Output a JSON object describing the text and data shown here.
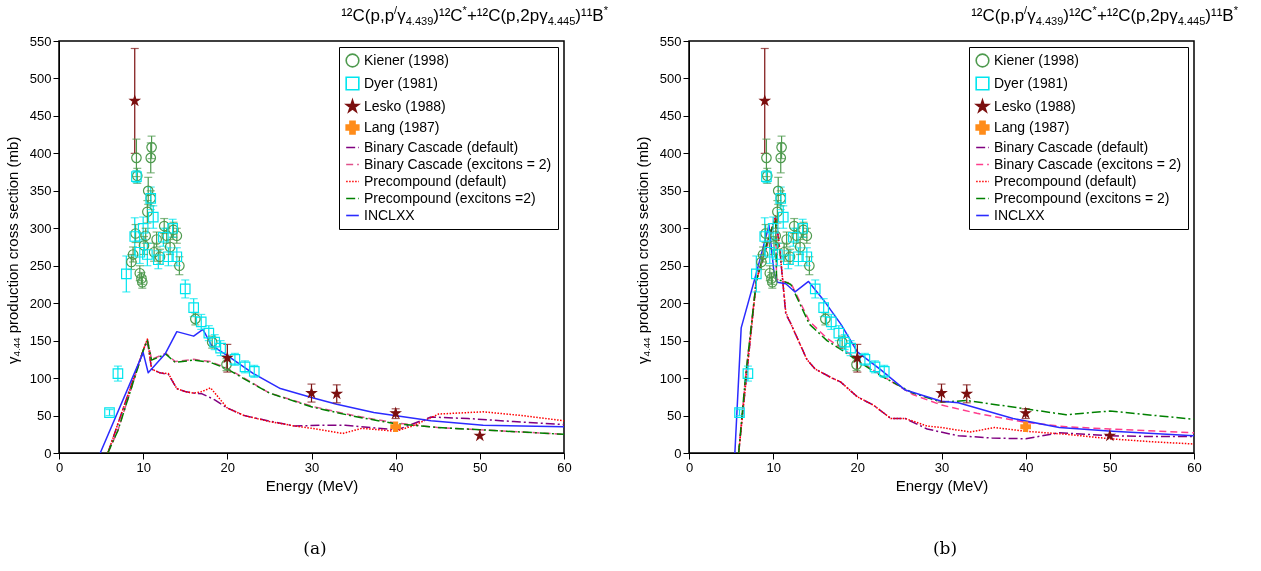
{
  "chart_data": [
    {
      "type": "line",
      "title": "¹²C(p,p$^{/}$γ$_{4.439}$)¹²C$^{*}$+¹²C(p,2pγ$_{4.445}$)¹¹B$^{*}$",
      "xlabel": "Energy (MeV)",
      "ylabel": "γ$_{4.44}$ production cross section (mb)",
      "annotations": [
        "(a)"
      ],
      "xlim": [
        0,
        60
      ],
      "ylim": [
        0,
        550
      ],
      "xticks": [
        0,
        10,
        20,
        30,
        40,
        50,
        60
      ],
      "yticks": [
        0,
        50,
        100,
        150,
        200,
        250,
        300,
        350,
        400,
        450,
        500,
        550
      ],
      "grid": false,
      "legend": "top right",
      "series": [
        {
          "name": "Kiener (1998)",
          "type": "scatter",
          "marker": "circle",
          "color": "#4e9a4e",
          "x": [
            8.6,
            8.8,
            9.1,
            9.2,
            9.3,
            9.6,
            9.8,
            9.9,
            10.1,
            10.3,
            10.5,
            10.6,
            10.9,
            11.0,
            10.9,
            11.3,
            11.6,
            12.0,
            12.5,
            12.8,
            13.2,
            13.6,
            14.0,
            14.3,
            16.2,
            18.2,
            19.9
          ],
          "values": [
            255,
            265,
            293,
            394,
            370,
            240,
            233,
            228,
            277,
            290,
            322,
            350,
            394,
            408,
            340,
            268,
            285,
            262,
            303,
            290,
            275,
            298,
            290,
            250,
            179,
            148,
            118
          ],
          "errors": [
            10,
            10,
            12,
            25,
            10,
            10,
            8,
            8,
            12,
            10,
            15,
            18,
            20,
            15,
            10,
            12,
            10,
            10,
            10,
            10,
            10,
            10,
            10,
            12,
            8,
            8,
            8
          ]
        },
        {
          "name": "Dyer (1981)",
          "type": "scatter",
          "marker": "square",
          "color": "#00e5ee",
          "x": [
            6.0,
            7.0,
            8.0,
            9.0,
            9.2,
            9.6,
            10.0,
            10.5,
            10.9,
            11.2,
            11.8,
            12.4,
            13.0,
            13.5,
            14.0,
            15.0,
            16.0,
            16.9,
            17.8,
            18.5,
            19.2,
            20.9,
            22.1,
            23.2
          ],
          "values": [
            54,
            106,
            239,
            289,
            369,
            268,
            300,
            265,
            340,
            315,
            258,
            288,
            262,
            300,
            262,
            219,
            194,
            175,
            160,
            148,
            140,
            125,
            115,
            109
          ],
          "errors": [
            4,
            10,
            24,
            25,
            8,
            15,
            15,
            15,
            15,
            15,
            12,
            12,
            12,
            12,
            12,
            12,
            12,
            10,
            10,
            10,
            10,
            8,
            8,
            8
          ]
        },
        {
          "name": "Lesko (1988)",
          "type": "scatter",
          "marker": "star",
          "color": "#7b0f0f",
          "x": [
            9.0,
            20,
            30,
            33,
            40,
            50
          ],
          "values": [
            470,
            127,
            80,
            79,
            53,
            23
          ],
          "errors": [
            [
              400,
              540
            ],
            [
              108,
              145
            ],
            [
              68,
              92
            ],
            [
              67,
              91
            ],
            [
              46,
              59
            ],
            null
          ]
        },
        {
          "name": "Lang (1987)",
          "type": "scatter",
          "marker": "cross",
          "color": "#ff8c1a",
          "x": [
            40
          ],
          "values": [
            35
          ]
        },
        {
          "name": "Binary Cascade (default)",
          "type": "line",
          "line_style": "dashdot",
          "color": "#800080",
          "x": [
            5.8,
            10.1,
            10.5,
            11,
            12,
            13,
            14,
            15,
            16,
            17,
            18.5,
            20,
            22,
            24.8,
            28,
            31,
            34,
            37,
            40.2,
            44.2,
            48.6,
            54,
            60
          ],
          "values": [
            0,
            140,
            150,
            112,
            107,
            105,
            86,
            82,
            80,
            79,
            71,
            60,
            50,
            43,
            36,
            37,
            37,
            34,
            31,
            48,
            46,
            42,
            38
          ]
        },
        {
          "name": "Binary Cascade (excitons = 2)",
          "type": "line",
          "line_style": "dashed",
          "color": "#e0508a",
          "x": [
            5.8,
            7,
            10.1,
            10.5,
            11,
            12.7,
            13.8,
            16,
            18,
            20,
            22,
            25,
            30.2,
            35,
            40,
            45,
            50,
            55,
            60
          ],
          "values": [
            0,
            30,
            140,
            152,
            125,
            133,
            122,
            125,
            122,
            113,
            100,
            80,
            62,
            50,
            40,
            34,
            31,
            28,
            25
          ]
        },
        {
          "name": "Precompound (default)",
          "type": "line",
          "line_style": "dotted",
          "color": "#ff0000",
          "x": [
            5.8,
            10.1,
            10.5,
            11,
            12,
            13,
            14,
            15,
            16,
            17,
            18,
            20,
            22,
            25,
            28,
            30,
            33.7,
            36,
            40,
            42,
            45.1,
            50.4,
            55,
            60
          ],
          "values": [
            0,
            140,
            152,
            112,
            107,
            106,
            86,
            82,
            80,
            82,
            87,
            60,
            50,
            42,
            36,
            33,
            26,
            33,
            29,
            36,
            52,
            55,
            50,
            43
          ]
        },
        {
          "name": "Precompound (excitons =2)",
          "type": "line",
          "line_style": "dashdot",
          "color": "#008000",
          "x": [
            5.8,
            7,
            10.1,
            10.5,
            11,
            12.7,
            13.8,
            16,
            18,
            20,
            22,
            25,
            30.2,
            35,
            40,
            45,
            50,
            55,
            60
          ],
          "values": [
            0,
            30,
            140,
            150,
            124,
            132,
            121,
            124,
            121,
            112,
            99,
            80,
            61,
            49,
            39,
            34,
            31,
            28,
            25
          ]
        },
        {
          "name": "INCLXX",
          "type": "line",
          "line_style": "solid",
          "color": "#2b2bff",
          "x": [
            4.9,
            10.0,
            10.6,
            12.6,
            14.0,
            16.0,
            17.1,
            18.1,
            20.4,
            23.1,
            26.3,
            30,
            33,
            37.4,
            44.2,
            50.4,
            60
          ],
          "values": [
            0,
            134,
            107,
            132,
            162,
            156,
            165,
            144,
            127,
            106,
            86,
            74,
            65,
            54,
            43,
            37,
            35
          ]
        }
      ]
    },
    {
      "type": "line",
      "title": "¹²C(p,p$^{/}$γ$_{4.439}$)¹²C$^{*}$+¹²C(p,2pγ$_{4.445}$)¹¹B$^{*}$",
      "xlabel": "Energy (MeV)",
      "ylabel": "γ$_{4.44}$ production cross section (mb)",
      "annotations": [
        "(b)"
      ],
      "xlim": [
        0,
        60
      ],
      "ylim": [
        0,
        550
      ],
      "xticks": [
        0,
        10,
        20,
        30,
        40,
        50,
        60
      ],
      "yticks": [
        0,
        50,
        100,
        150,
        200,
        250,
        300,
        350,
        400,
        450,
        500,
        550
      ],
      "grid": false,
      "legend": "top right",
      "series": [
        {
          "name": "Kiener (1998)",
          "type": "scatter",
          "marker": "circle",
          "color": "#4e9a4e",
          "x": [
            8.6,
            8.8,
            9.1,
            9.2,
            9.3,
            9.6,
            9.8,
            9.9,
            10.1,
            10.3,
            10.5,
            10.6,
            10.9,
            11.0,
            10.9,
            11.3,
            11.6,
            12.0,
            12.5,
            12.8,
            13.2,
            13.6,
            14.0,
            14.3,
            16.2,
            18.2,
            19.9
          ],
          "values": [
            255,
            265,
            293,
            394,
            370,
            240,
            233,
            228,
            277,
            290,
            322,
            350,
            394,
            408,
            340,
            268,
            285,
            262,
            303,
            290,
            275,
            298,
            290,
            250,
            179,
            148,
            118
          ],
          "errors": [
            10,
            10,
            12,
            25,
            10,
            10,
            8,
            8,
            12,
            10,
            15,
            18,
            20,
            15,
            10,
            12,
            10,
            10,
            10,
            10,
            10,
            10,
            10,
            12,
            8,
            8,
            8
          ]
        },
        {
          "name": "Dyer (1981)",
          "type": "scatter",
          "marker": "square",
          "color": "#00e5ee",
          "x": [
            6.0,
            7.0,
            8.0,
            9.0,
            9.2,
            9.6,
            10.0,
            10.5,
            10.9,
            11.2,
            11.8,
            12.4,
            13.0,
            13.5,
            14.0,
            15.0,
            16.0,
            16.9,
            17.8,
            18.5,
            19.2,
            20.9,
            22.1,
            23.2
          ],
          "values": [
            54,
            106,
            239,
            289,
            369,
            268,
            300,
            265,
            340,
            315,
            258,
            288,
            262,
            300,
            262,
            219,
            194,
            175,
            160,
            148,
            140,
            125,
            115,
            109
          ],
          "errors": [
            4,
            10,
            24,
            25,
            8,
            15,
            15,
            15,
            15,
            15,
            12,
            12,
            12,
            12,
            12,
            12,
            12,
            10,
            10,
            10,
            10,
            8,
            8,
            8
          ]
        },
        {
          "name": "Lesko (1988)",
          "type": "scatter",
          "marker": "star",
          "color": "#7b0f0f",
          "x": [
            9.0,
            20,
            30,
            33,
            40,
            50
          ],
          "values": [
            470,
            127,
            80,
            79,
            53,
            23
          ],
          "errors": [
            [
              400,
              540
            ],
            [
              108,
              145
            ],
            [
              68,
              92
            ],
            [
              67,
              91
            ],
            [
              46,
              59
            ],
            null
          ]
        },
        {
          "name": "Lang (1987)",
          "type": "scatter",
          "marker": "cross",
          "color": "#ff8c1a",
          "x": [
            40
          ],
          "values": [
            35
          ]
        },
        {
          "name": "Binary Cascade (default)",
          "type": "line",
          "line_style": "dashdot",
          "color": "#800080",
          "x": [
            5.9,
            8,
            10.3,
            10.8,
            11.5,
            12,
            13,
            14,
            15,
            17,
            18,
            20,
            21.9,
            24,
            25.7,
            28.3,
            32,
            36,
            40,
            44,
            50,
            55,
            60
          ],
          "values": [
            0,
            230,
            315,
            270,
            185,
            175,
            150,
            125,
            112,
            100,
            95,
            75,
            64,
            46,
            46,
            32,
            23,
            20,
            19,
            27,
            23,
            22,
            22
          ]
        },
        {
          "name": "Binary Cascade (excitons = 2)",
          "type": "line",
          "line_style": "dashed",
          "color": "#ff3c8c",
          "x": [
            5.9,
            6.7,
            8,
            9.5,
            10.3,
            10.4,
            11.5,
            12.1,
            14.3,
            16.4,
            18.9,
            20,
            22.8,
            26.6,
            30,
            34.2,
            40,
            44.8,
            50,
            60
          ],
          "values": [
            0,
            100,
            230,
            290,
            315,
            232,
            228,
            227,
            176,
            153,
            134,
            125,
            104,
            78,
            64,
            53,
            41,
            35,
            32,
            27
          ]
        },
        {
          "name": "Precompound (default)",
          "type": "line",
          "line_style": "dotted",
          "color": "#ff0000",
          "x": [
            5.9,
            8,
            10.3,
            10.8,
            11.5,
            12,
            13,
            14,
            15,
            17,
            18,
            20,
            21.9,
            24,
            25.7,
            28.3,
            30,
            33.4,
            36.3,
            40,
            44.8,
            50,
            55,
            60
          ],
          "values": [
            0,
            230,
            318,
            270,
            188,
            175,
            150,
            125,
            112,
            100,
            95,
            75,
            64,
            46,
            46,
            36,
            34,
            28,
            34,
            29,
            25,
            19,
            15,
            12
          ]
        },
        {
          "name": "Precompound (excitons = 2)",
          "type": "line",
          "line_style": "dashdot",
          "color": "#008000",
          "x": [
            5.9,
            6.7,
            8,
            9.5,
            10.3,
            10.4,
            11.5,
            12.1,
            14.3,
            16.4,
            18.9,
            20,
            22.8,
            26.6,
            30,
            33,
            40,
            44.8,
            50,
            60
          ],
          "values": [
            0,
            100,
            230,
            290,
            312,
            232,
            228,
            225,
            172,
            150,
            132,
            123,
            103,
            80,
            68,
            70,
            59,
            51,
            56,
            45
          ]
        },
        {
          "name": "INCLXX",
          "type": "line",
          "line_style": "solid",
          "color": "#2b2bff",
          "x": [
            5.45,
            6.2,
            8,
            9.5,
            10.1,
            10.5,
            11.5,
            12.6,
            14.2,
            16,
            18.1,
            20,
            22.8,
            25.7,
            30,
            32,
            38.5,
            44,
            50.3,
            60
          ],
          "values": [
            0,
            167,
            240,
            304,
            241,
            228,
            226,
            215,
            229,
            204,
            171,
            135,
            111,
            84,
            69,
            67,
            46,
            34,
            29,
            23
          ]
        }
      ]
    }
  ]
}
